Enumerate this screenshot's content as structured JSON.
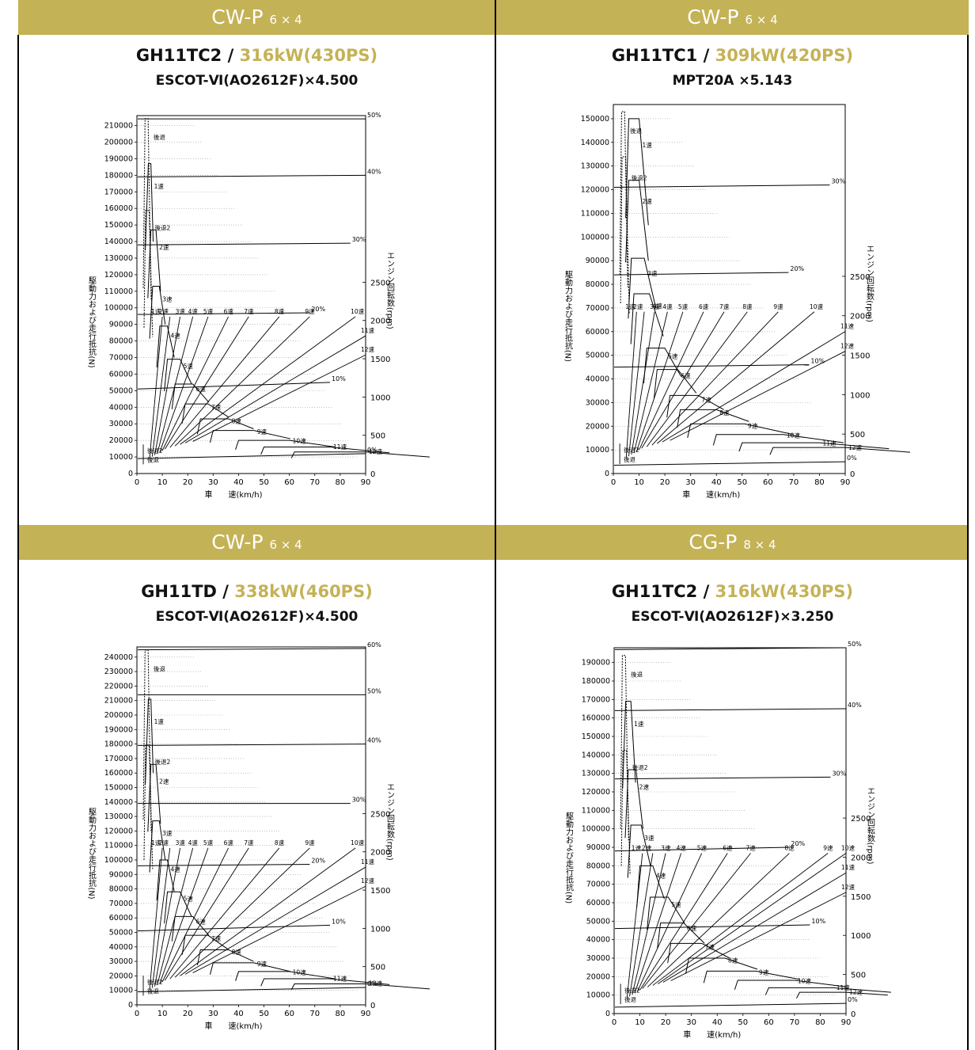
{
  "colors": {
    "band": "#C4B256",
    "accent": "#C4B256"
  },
  "panels": [
    {
      "cls": "CW-P",
      "axle": "6 × 4",
      "engine": "GH11TC2",
      "sep": " / ",
      "power": "316kW(430PS)",
      "trans": "ESCOT-Ⅵ(AO2612F)×4.500",
      "chart_data": {
        "type": "line",
        "xlabel": "車　　速(km/h)",
        "ylabel": "駆動力および走行抵抗(N)",
        "y2label": "エンジン回転数(rpm)",
        "xlim": [
          0,
          90
        ],
        "ylim": [
          0,
          210000
        ],
        "y2lim": [
          0,
          2500
        ],
        "y_step": 10000,
        "y2_ticks": [
          0,
          500,
          1000,
          1500,
          2000,
          2500
        ],
        "gears": [
          {
            "name": "1速",
            "x": [
              4.5,
              5.5
            ],
            "force": [
              187000,
              187000,
              140000
            ]
          },
          {
            "name": "2速",
            "x": [
              5.5,
              7.5
            ],
            "force": [
              147000,
              147000,
              110000
            ]
          },
          {
            "name": "3速",
            "x": [
              6.2,
              8.8
            ],
            "force": [
              113000,
              113000,
              90000
            ]
          },
          {
            "name": "4速",
            "x": [
              9,
              12
            ],
            "force": [
              89000,
              89000,
              70000
            ]
          },
          {
            "name": "5速",
            "x": [
              12,
              17
            ],
            "force": [
              69000,
              69000,
              54000
            ]
          },
          {
            "name": "6速",
            "x": [
              15,
              22
            ],
            "force": [
              54000,
              54000,
              43000
            ]
          },
          {
            "name": "7速",
            "x": [
              19,
              28
            ],
            "force": [
              42000,
              42000,
              34000
            ]
          },
          {
            "name": "8速",
            "x": [
              25,
              36
            ],
            "force": [
              33000,
              33000,
              27000
            ]
          },
          {
            "name": "9速",
            "x": [
              30,
              46
            ],
            "force": [
              26000,
              26000,
              21000
            ]
          },
          {
            "name": "10速",
            "x": [
              40,
              60
            ],
            "force": [
              20000,
              20000,
              16000
            ]
          },
          {
            "name": "11速",
            "x": [
              50,
              76
            ],
            "force": [
              16000,
              16000,
              12500
            ]
          },
          {
            "name": "12速",
            "x": [
              62,
              90
            ],
            "force": [
              13000,
              13000,
              10000
            ]
          }
        ],
        "resistance": [
          {
            "name": "0%",
            "y": [
              9000,
              12000
            ]
          },
          {
            "name": "10%",
            "y": [
              51000,
              55000
            ]
          },
          {
            "name": "20%",
            "y": [
              96000,
              97000
            ]
          },
          {
            "name": "30%",
            "y": [
              138000,
              139000
            ]
          },
          {
            "name": "40%",
            "y": [
              179000,
              180000
            ]
          },
          {
            "name": "50%",
            "y": [
              214000,
              214000
            ]
          }
        ],
        "rev_labels": [
          "1速",
          "2速",
          "3速",
          "4速",
          "5速",
          "6速",
          "7速",
          "8速",
          "9速",
          "10速",
          "11速",
          "12速"
        ],
        "rev_max": [
          10,
          13,
          17,
          22,
          28,
          36,
          44,
          56,
          68,
          86,
          90,
          90
        ],
        "rev_lo": [
          5,
          6,
          7,
          8,
          9,
          10,
          11,
          13,
          15,
          17,
          19,
          22
        ],
        "reverse": [
          "後退",
          "後退2"
        ]
      }
    },
    {
      "cls": "CW-P",
      "axle": "6 × 4",
      "engine": "GH11TC1",
      "sep": " / ",
      "power": "309kW(420PS)",
      "trans": "MPT20A ×5.143",
      "chart_data": {
        "type": "line",
        "xlabel": "車　　速(km/h)",
        "ylabel": "駆動力および走行抵抗(N)",
        "y2label": "エンジン回転数(rpm)",
        "xlim": [
          0,
          90
        ],
        "ylim": [
          0,
          150000
        ],
        "y2lim": [
          0,
          2500
        ],
        "y_step": 10000,
        "y2_ticks": [
          0,
          500,
          1000,
          1500,
          2000,
          2500
        ],
        "gears": [
          {
            "name": "1速",
            "x": [
              6,
              10
            ],
            "force": [
              150000,
              150000,
              105000
            ]
          },
          {
            "name": "2速",
            "x": [
              6,
              10
            ],
            "force": [
              124000,
              124000,
              90000
            ]
          },
          {
            "name": "3速",
            "x": [
              7,
              12
            ],
            "force": [
              91000,
              91000,
              70000
            ]
          },
          {
            "name": "4速",
            "x": [
              8,
              14
            ],
            "force": [
              76000,
              76000,
              58000
            ]
          },
          {
            "name": "5速",
            "x": [
              13,
              20
            ],
            "force": [
              53000,
              53000,
              41000
            ]
          },
          {
            "name": "6速",
            "x": [
              17,
              25
            ],
            "force": [
              44000,
              44000,
              34000
            ]
          },
          {
            "name": "7速",
            "x": [
              22,
              33
            ],
            "force": [
              33000,
              33000,
              27000
            ]
          },
          {
            "name": "8速",
            "x": [
              26,
              40
            ],
            "force": [
              27000,
              27000,
              22000
            ]
          },
          {
            "name": "9速",
            "x": [
              30,
              51
            ],
            "force": [
              21000,
              21000,
              16500
            ]
          },
          {
            "name": "10速",
            "x": [
              40,
              66
            ],
            "force": [
              16500,
              16500,
              13000
            ]
          },
          {
            "name": "11速",
            "x": [
              50,
              80
            ],
            "force": [
              13000,
              13000,
              10500
            ]
          },
          {
            "name": "12速",
            "x": [
              62,
              90
            ],
            "force": [
              11000,
              11000,
              9000
            ]
          }
        ],
        "resistance": [
          {
            "name": "0%",
            "y": [
              3500,
              5000
            ]
          },
          {
            "name": "10%",
            "y": [
              45000,
              46000
            ]
          },
          {
            "name": "20%",
            "y": [
              84000,
              85000
            ]
          },
          {
            "name": "30%",
            "y": [
              121000,
              122000
            ]
          }
        ],
        "rev_labels": [
          "1速",
          "2速",
          "3速",
          "4速",
          "5速",
          "6速",
          "7速",
          "8速",
          "9速",
          "10速",
          "11速",
          "12速"
        ],
        "rev_max": [
          9,
          12,
          16,
          21,
          27,
          35,
          43,
          52,
          64,
          78,
          90,
          90
        ],
        "rev_lo": [
          5,
          6,
          7,
          8,
          9,
          10,
          11,
          13,
          15,
          17,
          19,
          22
        ],
        "reverse": [
          "後退",
          "後退2"
        ]
      }
    },
    {
      "cls": "CW-P",
      "axle": "6 × 4",
      "engine": "GH11TD",
      "sep": " / ",
      "power": "338kW(460PS)",
      "trans": "ESCOT-Ⅵ(AO2612F)×4.500",
      "chart_data": {
        "type": "line",
        "xlabel": "車　　速(km/h)",
        "ylabel": "駆動力および走行抵抗(N)",
        "y2label": "エンジン回転数(rpm)",
        "xlim": [
          0,
          90
        ],
        "ylim": [
          0,
          240000
        ],
        "y2lim": [
          0,
          2500
        ],
        "y_step": 10000,
        "y2_ticks": [
          0,
          500,
          1000,
          1500,
          2000,
          2500
        ],
        "gears": [
          {
            "name": "1速",
            "x": [
              4.5,
              5.5
            ],
            "force": [
              211000,
              211000,
              160000
            ]
          },
          {
            "name": "2速",
            "x": [
              5.5,
              7.5
            ],
            "force": [
              166000,
              166000,
              125000
            ]
          },
          {
            "name": "3速",
            "x": [
              6.2,
              8.8
            ],
            "force": [
              127000,
              127000,
              100000
            ]
          },
          {
            "name": "4速",
            "x": [
              9,
              12
            ],
            "force": [
              100000,
              100000,
              78000
            ]
          },
          {
            "name": "5速",
            "x": [
              12,
              17
            ],
            "force": [
              78000,
              78000,
              61000
            ]
          },
          {
            "name": "6速",
            "x": [
              15,
              22
            ],
            "force": [
              61000,
              61000,
              48000
            ]
          },
          {
            "name": "7速",
            "x": [
              19,
              28
            ],
            "force": [
              48000,
              48000,
              38000
            ]
          },
          {
            "name": "8速",
            "x": [
              25,
              36
            ],
            "force": [
              38000,
              38000,
              30000
            ]
          },
          {
            "name": "9速",
            "x": [
              30,
              46
            ],
            "force": [
              29000,
              29000,
              23000
            ]
          },
          {
            "name": "10速",
            "x": [
              40,
              60
            ],
            "force": [
              23000,
              23000,
              18000
            ]
          },
          {
            "name": "11速",
            "x": [
              50,
              76
            ],
            "force": [
              18000,
              18000,
              14000
            ]
          },
          {
            "name": "12速",
            "x": [
              62,
              90
            ],
            "force": [
              14500,
              14500,
              11000
            ]
          }
        ],
        "resistance": [
          {
            "name": "0%",
            "y": [
              9000,
              12000
            ]
          },
          {
            "name": "10%",
            "y": [
              51000,
              55000
            ]
          },
          {
            "name": "20%",
            "y": [
              96000,
              97000
            ]
          },
          {
            "name": "30%",
            "y": [
              139000,
              139000
            ]
          },
          {
            "name": "40%",
            "y": [
              179000,
              180000
            ]
          },
          {
            "name": "50%",
            "y": [
              214000,
              214000
            ]
          },
          {
            "name": "60%",
            "y": [
              245000,
              246000
            ]
          }
        ],
        "rev_labels": [
          "1速",
          "2速",
          "3速",
          "4速",
          "5速",
          "6速",
          "7速",
          "8速",
          "9速",
          "10速",
          "11速",
          "12速"
        ],
        "rev_max": [
          10,
          13,
          17,
          22,
          28,
          36,
          44,
          56,
          68,
          86,
          90,
          90
        ],
        "rev_lo": [
          5,
          6,
          7,
          8,
          9,
          10,
          11,
          13,
          15,
          17,
          19,
          22
        ],
        "reverse": [
          "後退",
          "後退2"
        ]
      }
    },
    {
      "cls": "CG-P",
      "axle": "8 × 4",
      "engine": "GH11TC2",
      "sep": " / ",
      "power": "316kW(430PS)",
      "trans": "ESCOT-Ⅵ(AO2612F)×3.250",
      "chart_data": {
        "type": "line",
        "xlabel": "車　　速(km/h)",
        "ylabel": "駆動力および走行抵抗(N)",
        "y2label": "エンジン回転数(rpm)",
        "xlim": [
          0,
          90
        ],
        "ylim": [
          0,
          190000
        ],
        "y2lim": [
          0,
          2500
        ],
        "y_step": 10000,
        "y2_ticks": [
          0,
          500,
          1000,
          1500,
          2000,
          2500
        ],
        "gears": [
          {
            "name": "1速",
            "x": [
              4.5,
              6.5
            ],
            "force": [
              169000,
              169000,
              125000
            ]
          },
          {
            "name": "2速",
            "x": [
              5.5,
              8.5
            ],
            "force": [
              132000,
              132000,
              100000
            ]
          },
          {
            "name": "3速",
            "x": [
              6.5,
              10.5
            ],
            "force": [
              102000,
              102000,
              80000
            ]
          },
          {
            "name": "4速",
            "x": [
              10,
              15
            ],
            "force": [
              80000,
              80000,
              62000
            ]
          },
          {
            "name": "5速",
            "x": [
              14,
              21
            ],
            "force": [
              63000,
              63000,
              49000
            ]
          },
          {
            "name": "6速",
            "x": [
              18,
              27
            ],
            "force": [
              49000,
              49000,
              38000
            ]
          },
          {
            "name": "7速",
            "x": [
              22,
              34
            ],
            "force": [
              38000,
              38000,
              30000
            ]
          },
          {
            "name": "8速",
            "x": [
              29,
              43
            ],
            "force": [
              30000,
              30000,
              24000
            ]
          },
          {
            "name": "9速",
            "x": [
              36,
              55
            ],
            "force": [
              23000,
              23000,
              18500
            ]
          },
          {
            "name": "10速",
            "x": [
              48,
              70
            ],
            "force": [
              18000,
              18000,
              14500
            ]
          },
          {
            "name": "11速",
            "x": [
              60,
              85
            ],
            "force": [
              14000,
              14000,
              11500
            ]
          },
          {
            "name": "12速",
            "x": [
              72,
              90
            ],
            "force": [
              11500,
              11500,
              10000
            ]
          }
        ],
        "resistance": [
          {
            "name": "0%",
            "y": [
              3500,
              5500
            ]
          },
          {
            "name": "10%",
            "y": [
              46000,
              48000
            ]
          },
          {
            "name": "20%",
            "y": [
              88000,
              90000
            ]
          },
          {
            "name": "30%",
            "y": [
              127000,
              128000
            ]
          },
          {
            "name": "40%",
            "y": [
              164000,
              165000
            ]
          },
          {
            "name": "50%",
            "y": [
              197000,
              198000
            ]
          }
        ],
        "rev_labels": [
          "1速",
          "2速",
          "3速",
          "4速",
          "5速",
          "6速",
          "7速",
          "8速",
          "9速",
          "10速",
          "11速",
          "12速"
        ],
        "rev_max": [
          11,
          15,
          20,
          26,
          34,
          44,
          53,
          68,
          83,
          90,
          90,
          90
        ],
        "rev_lo": [
          5,
          6,
          7,
          8,
          9,
          10,
          11,
          13,
          15,
          17,
          19,
          22
        ],
        "reverse": [
          "後退",
          "後退2"
        ]
      }
    }
  ]
}
